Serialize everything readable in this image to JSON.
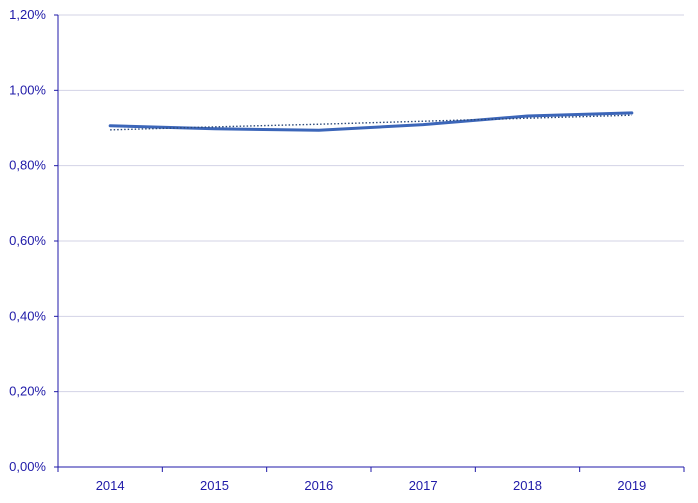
{
  "chart_data": {
    "type": "line",
    "title": "",
    "xlabel": "",
    "ylabel": "",
    "categories": [
      "2014",
      "2015",
      "2016",
      "2017",
      "2018",
      "2019"
    ],
    "y_tick_labels": [
      "0,00%",
      "0,20%",
      "0,40%",
      "0,60%",
      "0,80%",
      "1,00%",
      "1,20%"
    ],
    "ylim": [
      0,
      0.012
    ],
    "grid": true,
    "legend": "none",
    "series": [
      {
        "values": [
          0.00906,
          0.00898,
          0.00894,
          0.00909,
          0.00932,
          0.0094
        ],
        "style": "solid",
        "color": "#3c66b9"
      },
      {
        "values": [
          0.00895,
          0.00903,
          0.0091,
          0.00918,
          0.00926,
          0.00934
        ],
        "style": "dotted",
        "color": "#2c4a7a"
      }
    ]
  },
  "colors": {
    "axis": "#1f1aa8",
    "grid": "#d3d3e6",
    "text": "#1f1aa8"
  }
}
